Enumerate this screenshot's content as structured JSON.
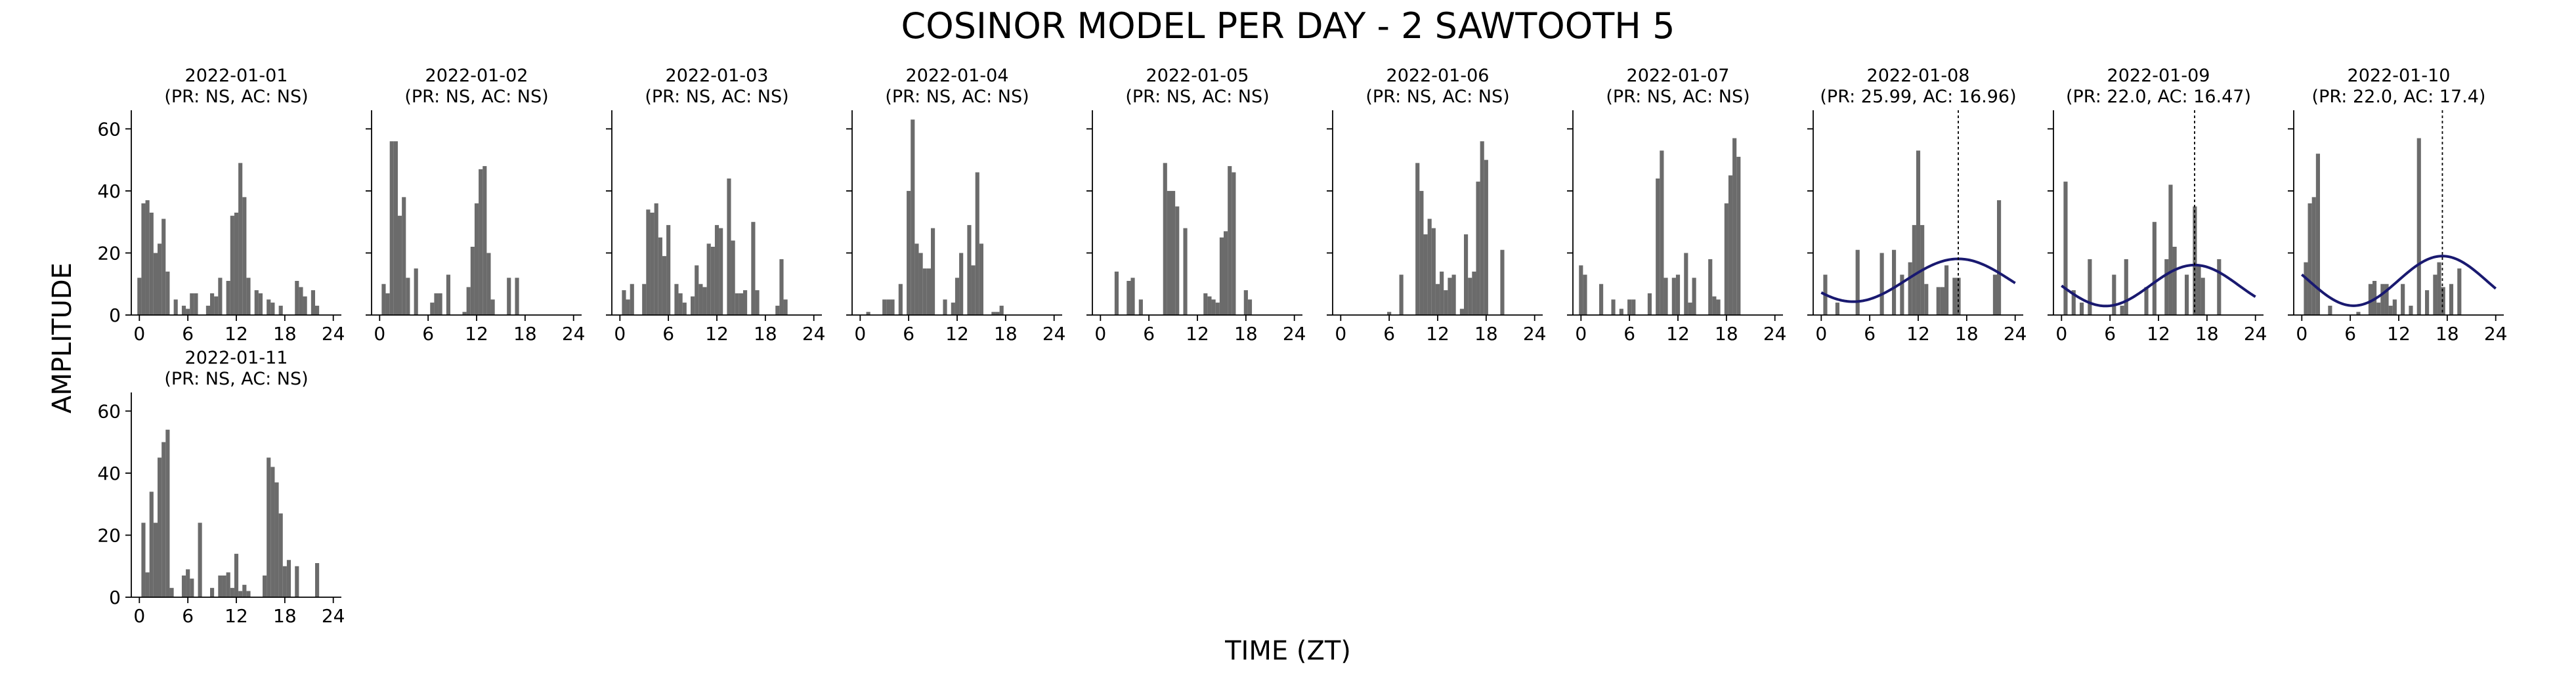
{
  "figure": {
    "title": "COSINOR MODEL PER DAY - 2 SAWTOOTH 5",
    "xlabel": "TIME (ZT)",
    "ylabel": "AMPLITUDE",
    "colors": {
      "bar": "#6b6b6b",
      "fit": "#191970",
      "axis": "#000000"
    }
  },
  "chart_data": [
    {
      "type": "bar",
      "date": "2022-01-01",
      "stats": "(PR: NS, AC: NS)",
      "x": [
        0,
        0.5,
        1,
        1.5,
        2,
        2.5,
        3,
        3.5,
        4,
        4.5,
        5,
        5.5,
        6,
        6.5,
        7,
        7.5,
        8,
        8.5,
        9,
        9.5,
        10,
        10.5,
        11,
        11.5,
        12,
        12.5,
        13,
        13.5,
        14,
        14.5,
        15,
        15.5,
        16,
        16.5,
        17,
        17.5,
        18,
        18.5,
        19,
        19.5,
        20,
        20.5,
        21,
        21.5,
        22,
        22.5,
        23,
        23.5
      ],
      "values": [
        12,
        36,
        37,
        33,
        20,
        23,
        31,
        14,
        0,
        5,
        0,
        3,
        2,
        7,
        7,
        0,
        0,
        3,
        7,
        6,
        12,
        0,
        11,
        32,
        33,
        49,
        38,
        12,
        0,
        8,
        7,
        0,
        5,
        4,
        0,
        3,
        0,
        0,
        0,
        11,
        9,
        6,
        0,
        8,
        3,
        0,
        0,
        0
      ],
      "ylim": [
        0,
        66
      ],
      "xticks": [
        0,
        6,
        12,
        18,
        24
      ],
      "yticks": [
        0,
        20,
        40,
        60
      ]
    },
    {
      "type": "bar",
      "date": "2022-01-02",
      "stats": "(PR: NS, AC: NS)",
      "x": [
        0,
        0.5,
        1,
        1.5,
        2,
        2.5,
        3,
        3.5,
        4,
        4.5,
        5,
        5.5,
        6,
        6.5,
        7,
        7.5,
        8,
        8.5,
        9,
        9.5,
        10,
        10.5,
        11,
        11.5,
        12,
        12.5,
        13,
        13.5,
        14,
        14.5,
        15,
        15.5,
        16,
        16.5,
        17,
        17.5,
        18,
        18.5,
        19,
        19.5,
        20,
        20.5,
        21,
        21.5,
        22,
        22.5,
        23,
        23.5
      ],
      "values": [
        0,
        10,
        7,
        56,
        56,
        32,
        38,
        12,
        0,
        15,
        0,
        0,
        0,
        4,
        7,
        7,
        0,
        13,
        0,
        0,
        0,
        1,
        9,
        22,
        36,
        47,
        48,
        20,
        5,
        0,
        0,
        0,
        12,
        0,
        12,
        0,
        0,
        0,
        0,
        0,
        0,
        0,
        0,
        0,
        0,
        0,
        0,
        0
      ],
      "ylim": [
        0,
        66
      ],
      "xticks": [
        0,
        6,
        12,
        18,
        24
      ],
      "yticks": [
        0,
        20,
        40,
        60
      ]
    },
    {
      "type": "bar",
      "date": "2022-01-03",
      "stats": "(PR: NS, AC: NS)",
      "x": [
        0,
        0.5,
        1,
        1.5,
        2,
        2.5,
        3,
        3.5,
        4,
        4.5,
        5,
        5.5,
        6,
        6.5,
        7,
        7.5,
        8,
        8.5,
        9,
        9.5,
        10,
        10.5,
        11,
        11.5,
        12,
        12.5,
        13,
        13.5,
        14,
        14.5,
        15,
        15.5,
        16,
        16.5,
        17,
        17.5,
        18,
        18.5,
        19,
        19.5,
        20,
        20.5,
        21,
        21.5,
        22,
        22.5,
        23,
        23.5
      ],
      "values": [
        0,
        8,
        5,
        10,
        0,
        0,
        10,
        34,
        33,
        36,
        25,
        19,
        29,
        0,
        10,
        7,
        4,
        0,
        6,
        16,
        10,
        9,
        23,
        22,
        29,
        28,
        0,
        44,
        24,
        7,
        7,
        8,
        0,
        30,
        8,
        0,
        0,
        0,
        0,
        3,
        18,
        5,
        0,
        0,
        0,
        0,
        0,
        0
      ],
      "ylim": [
        0,
        66
      ],
      "xticks": [
        0,
        6,
        12,
        18,
        24
      ],
      "yticks": [
        0,
        20,
        40,
        60
      ]
    },
    {
      "type": "bar",
      "date": "2022-01-04",
      "stats": "(PR: NS, AC: NS)",
      "x": [
        0,
        0.5,
        1,
        1.5,
        2,
        2.5,
        3,
        3.5,
        4,
        4.5,
        5,
        5.5,
        6,
        6.5,
        7,
        7.5,
        8,
        8.5,
        9,
        9.5,
        10,
        10.5,
        11,
        11.5,
        12,
        12.5,
        13,
        13.5,
        14,
        14.5,
        15,
        15.5,
        16,
        16.5,
        17,
        17.5,
        18,
        18.5,
        19,
        19.5,
        20,
        20.5,
        21,
        21.5,
        22,
        22.5,
        23,
        23.5
      ],
      "values": [
        0,
        0,
        1,
        0,
        0,
        0,
        5,
        5,
        5,
        0,
        10,
        0,
        40,
        63,
        23,
        20,
        15,
        15,
        28,
        0,
        0,
        5,
        0,
        4,
        12,
        20,
        0,
        29,
        16,
        46,
        23,
        0,
        0,
        1,
        1,
        3,
        0,
        0,
        0,
        0,
        0,
        0,
        0,
        0,
        0,
        0,
        0,
        0
      ],
      "ylim": [
        0,
        66
      ],
      "xticks": [
        0,
        6,
        12,
        18,
        24
      ],
      "yticks": [
        0,
        20,
        40,
        60
      ]
    },
    {
      "type": "bar",
      "date": "2022-01-05",
      "stats": "(PR: NS, AC: NS)",
      "x": [
        0,
        0.5,
        1,
        1.5,
        2,
        2.5,
        3,
        3.5,
        4,
        4.5,
        5,
        5.5,
        6,
        6.5,
        7,
        7.5,
        8,
        8.5,
        9,
        9.5,
        10,
        10.5,
        11,
        11.5,
        12,
        12.5,
        13,
        13.5,
        14,
        14.5,
        15,
        15.5,
        16,
        16.5,
        17,
        17.5,
        18,
        18.5,
        19,
        19.5,
        20,
        20.5,
        21,
        21.5,
        22,
        22.5,
        23,
        23.5
      ],
      "values": [
        0,
        0,
        0,
        0,
        14,
        0,
        0,
        11,
        12,
        0,
        5,
        0,
        0,
        0,
        0,
        0,
        49,
        40,
        40,
        35,
        0,
        28,
        0,
        0,
        0,
        0,
        7,
        6,
        5,
        4,
        25,
        27,
        48,
        46,
        0,
        0,
        8,
        5,
        0,
        0,
        0,
        0,
        0,
        0,
        0,
        0,
        0,
        0
      ],
      "ylim": [
        0,
        66
      ],
      "xticks": [
        0,
        6,
        12,
        18,
        24
      ],
      "yticks": [
        0,
        20,
        40,
        60
      ]
    },
    {
      "type": "bar",
      "date": "2022-01-06",
      "stats": "(PR: NS, AC: NS)",
      "x": [
        0,
        0.5,
        1,
        1.5,
        2,
        2.5,
        3,
        3.5,
        4,
        4.5,
        5,
        5.5,
        6,
        6.5,
        7,
        7.5,
        8,
        8.5,
        9,
        9.5,
        10,
        10.5,
        11,
        11.5,
        12,
        12.5,
        13,
        13.5,
        14,
        14.5,
        15,
        15.5,
        16,
        16.5,
        17,
        17.5,
        18,
        18.5,
        19,
        19.5,
        20,
        20.5,
        21,
        21.5,
        22,
        22.5,
        23,
        23.5
      ],
      "values": [
        0,
        0,
        0,
        0,
        0,
        0,
        0,
        0,
        0,
        0,
        0,
        0,
        1,
        0,
        0,
        13,
        0,
        0,
        0,
        49,
        40,
        26,
        31,
        28,
        10,
        14,
        8,
        12,
        13,
        0,
        2,
        26,
        12,
        14,
        43,
        56,
        50,
        0,
        0,
        0,
        21,
        0,
        0,
        0,
        0,
        0,
        0,
        0
      ],
      "ylim": [
        0,
        66
      ],
      "xticks": [
        0,
        6,
        12,
        18,
        24
      ],
      "yticks": [
        0,
        20,
        40,
        60
      ]
    },
    {
      "type": "bar",
      "date": "2022-01-07",
      "stats": "(PR: NS, AC: NS)",
      "x": [
        0,
        0.5,
        1,
        1.5,
        2,
        2.5,
        3,
        3.5,
        4,
        4.5,
        5,
        5.5,
        6,
        6.5,
        7,
        7.5,
        8,
        8.5,
        9,
        9.5,
        10,
        10.5,
        11,
        11.5,
        12,
        12.5,
        13,
        13.5,
        14,
        14.5,
        15,
        15.5,
        16,
        16.5,
        17,
        17.5,
        18,
        18.5,
        19,
        19.5,
        20,
        20.5,
        21,
        21.5,
        22,
        22.5,
        23,
        23.5
      ],
      "values": [
        16,
        13,
        0,
        0,
        0,
        10,
        0,
        0,
        5,
        0,
        2,
        0,
        5,
        5,
        0,
        0,
        0,
        7,
        0,
        44,
        53,
        12,
        0,
        12,
        13,
        0,
        20,
        4,
        12,
        0,
        0,
        0,
        18,
        6,
        5,
        0,
        36,
        45,
        57,
        51,
        0,
        0,
        0,
        0,
        0,
        0,
        0,
        0
      ],
      "ylim": [
        0,
        66
      ],
      "xticks": [
        0,
        6,
        12,
        18,
        24
      ],
      "yticks": [
        0,
        20,
        40,
        60
      ]
    },
    {
      "type": "bar",
      "date": "2022-01-08",
      "stats": "(PR: 25.99, AC: 16.96)",
      "x": [
        0,
        0.5,
        1,
        1.5,
        2,
        2.5,
        3,
        3.5,
        4,
        4.5,
        5,
        5.5,
        6,
        6.5,
        7,
        7.5,
        8,
        8.5,
        9,
        9.5,
        10,
        10.5,
        11,
        11.5,
        12,
        12.5,
        13,
        13.5,
        14,
        14.5,
        15,
        15.5,
        16,
        16.5,
        17,
        17.5,
        18,
        18.5,
        19,
        19.5,
        20,
        20.5,
        21,
        21.5,
        22,
        22.5,
        23,
        23.5
      ],
      "values": [
        0,
        13,
        0,
        0,
        4,
        0,
        0,
        0,
        0,
        21,
        0,
        0,
        0,
        0,
        0,
        20,
        0,
        0,
        21,
        0,
        13,
        0,
        17,
        29,
        53,
        29,
        10,
        0,
        0,
        9,
        9,
        16,
        0,
        12,
        12,
        0,
        0,
        0,
        0,
        0,
        0,
        0,
        0,
        13,
        37,
        0,
        0,
        0
      ],
      "ylim": [
        0,
        66
      ],
      "xticks": [
        0,
        6,
        12,
        18,
        24
      ],
      "yticks": [
        0,
        20,
        40,
        60
      ],
      "cosinor": {
        "mesor": 11.2,
        "amplitude": 6.9,
        "acrophase": 16.96,
        "period": 25.99
      }
    },
    {
      "type": "bar",
      "date": "2022-01-09",
      "stats": "(PR: 22.0, AC: 16.47)",
      "x": [
        0,
        0.5,
        1,
        1.5,
        2,
        2.5,
        3,
        3.5,
        4,
        4.5,
        5,
        5.5,
        6,
        6.5,
        7,
        7.5,
        8,
        8.5,
        9,
        9.5,
        10,
        10.5,
        11,
        11.5,
        12,
        12.5,
        13,
        13.5,
        14,
        14.5,
        15,
        15.5,
        16,
        16.5,
        17,
        17.5,
        18,
        18.5,
        19,
        19.5,
        20,
        20.5,
        21,
        21.5,
        22,
        22.5,
        23,
        23.5
      ],
      "values": [
        0,
        43,
        0,
        8,
        0,
        4,
        0,
        18,
        0,
        0,
        0,
        0,
        0,
        13,
        0,
        3,
        18,
        0,
        0,
        0,
        0,
        9,
        0,
        30,
        0,
        0,
        18,
        42,
        22,
        0,
        0,
        13,
        0,
        35,
        16,
        12,
        0,
        0,
        0,
        18,
        0,
        0,
        0,
        0,
        0,
        0,
        0,
        0
      ],
      "ylim": [
        0,
        66
      ],
      "xticks": [
        0,
        6,
        12,
        18,
        24
      ],
      "yticks": [
        0,
        20,
        40,
        60
      ],
      "cosinor": {
        "mesor": 9.5,
        "amplitude": 6.6,
        "acrophase": 16.47,
        "period": 22.0
      }
    },
    {
      "type": "bar",
      "date": "2022-01-10",
      "stats": "(PR: 22.0, AC: 17.4)",
      "x": [
        0,
        0.5,
        1,
        1.5,
        2,
        2.5,
        3,
        3.5,
        4,
        4.5,
        5,
        5.5,
        6,
        6.5,
        7,
        7.5,
        8,
        8.5,
        9,
        9.5,
        10,
        10.5,
        11,
        11.5,
        12,
        12.5,
        13,
        13.5,
        14,
        14.5,
        15,
        15.5,
        16,
        16.5,
        17,
        17.5,
        18,
        18.5,
        19,
        19.5,
        20,
        20.5,
        21,
        21.5,
        22,
        22.5,
        23,
        23.5
      ],
      "values": [
        0,
        17,
        36,
        38,
        52,
        0,
        0,
        3,
        0,
        0,
        0,
        0,
        0,
        0,
        1,
        0,
        0,
        10,
        11,
        4,
        10,
        10,
        3,
        5,
        0,
        10,
        0,
        3,
        0,
        57,
        0,
        8,
        0,
        13,
        17,
        9,
        0,
        10,
        0,
        15,
        0,
        0,
        0,
        0,
        0,
        0,
        0,
        0
      ],
      "ylim": [
        0,
        66
      ],
      "xticks": [
        0,
        6,
        12,
        18,
        24
      ],
      "yticks": [
        0,
        20,
        40,
        60
      ],
      "cosinor": {
        "mesor": 11.0,
        "amplitude": 8.0,
        "acrophase": 17.4,
        "period": 22.0
      }
    },
    {
      "type": "bar",
      "date": "2022-01-11",
      "stats": "(PR: NS, AC: NS)",
      "x": [
        0,
        0.5,
        1,
        1.5,
        2,
        2.5,
        3,
        3.5,
        4,
        4.5,
        5,
        5.5,
        6,
        6.5,
        7,
        7.5,
        8,
        8.5,
        9,
        9.5,
        10,
        10.5,
        11,
        11.5,
        12,
        12.5,
        13,
        13.5,
        14,
        14.5,
        15,
        15.5,
        16,
        16.5,
        17,
        17.5,
        18,
        18.5,
        19,
        19.5,
        20,
        20.5,
        21,
        21.5,
        22,
        22.5,
        23,
        23.5
      ],
      "values": [
        0,
        24,
        8,
        34,
        24,
        45,
        50,
        54,
        3,
        0,
        0,
        7,
        9,
        6,
        0,
        24,
        0,
        0,
        3,
        0,
        7,
        7,
        8,
        3,
        14,
        2,
        4,
        2,
        0,
        0,
        0,
        7,
        45,
        42,
        37,
        27,
        10,
        12,
        0,
        10,
        0,
        0,
        0,
        0,
        11,
        0,
        0,
        0
      ],
      "ylim": [
        0,
        66
      ],
      "xticks": [
        0,
        6,
        12,
        18,
        24
      ],
      "yticks": [
        0,
        20,
        40,
        60
      ]
    }
  ]
}
